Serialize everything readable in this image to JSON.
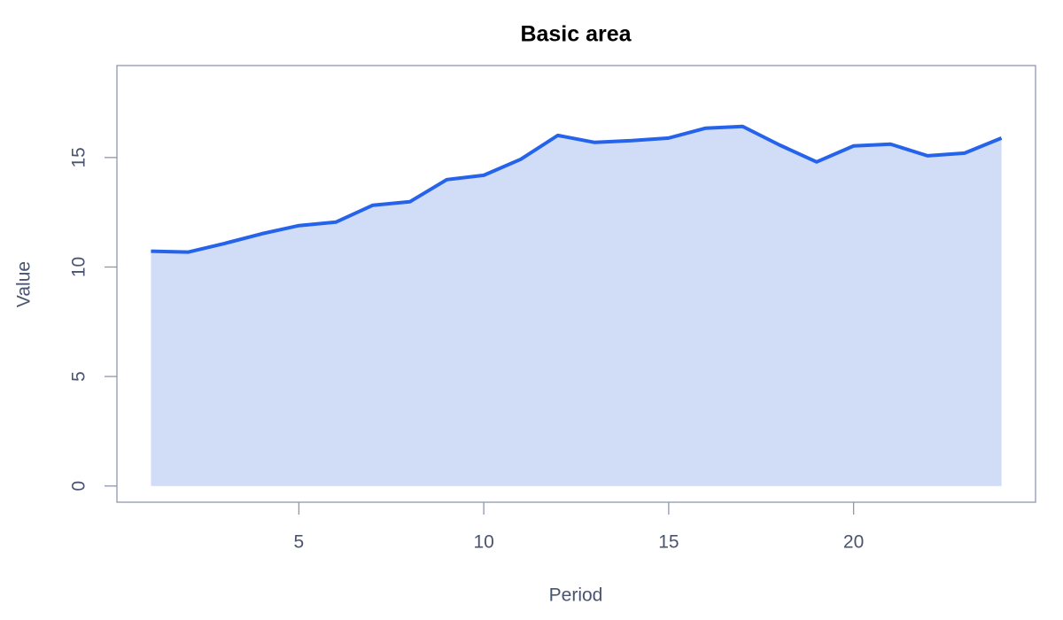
{
  "chart_data": {
    "type": "area",
    "title": "Basic area",
    "x_label": "Period",
    "y_label": "Value",
    "x": [
      1,
      2,
      3,
      4,
      5,
      6,
      7,
      8,
      9,
      10,
      11,
      12,
      13,
      14,
      15,
      16,
      17,
      18,
      19,
      20,
      21,
      22,
      23,
      24
    ],
    "series": [
      {
        "name": "Value",
        "color": "#2563eb",
        "fill": "#d1dcf7",
        "values": [
          10.72,
          10.68,
          11.08,
          11.52,
          11.89,
          12.05,
          12.82,
          12.98,
          13.99,
          14.19,
          14.92,
          16.01,
          15.69,
          15.77,
          15.89,
          16.34,
          16.42,
          15.57,
          14.8,
          15.53,
          15.61,
          15.08,
          15.2,
          15.89
        ]
      }
    ],
    "xlim": [
      0.08,
      24.92
    ],
    "xticks": [
      5,
      10,
      15,
      20
    ],
    "ylim": [
      -0.74,
      19.2
    ],
    "yticks": [
      0,
      5,
      10,
      15
    ]
  }
}
